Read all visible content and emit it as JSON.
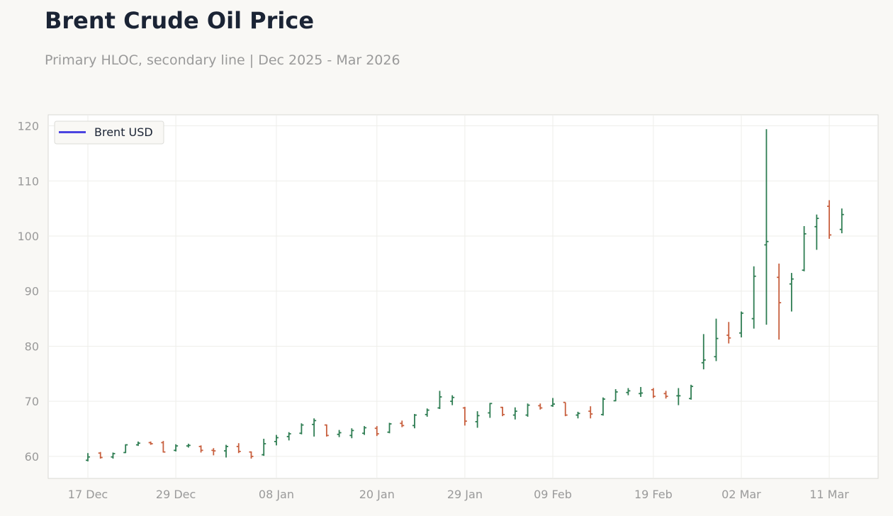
{
  "title": "Brent Crude Oil Price",
  "subtitle": "Primary HLOC, secondary line | Dec 2025 - Mar 2026",
  "colors": {
    "up": "#2e7d52",
    "down": "#c8603f",
    "line": "#4b45e0"
  },
  "chart_data": {
    "type": "ohlc",
    "title": "Brent Crude Oil Price",
    "subtitle": "Primary HLOC, secondary line | Dec 2025 - Mar 2026",
    "xlabel": "",
    "ylabel": "",
    "ylim": [
      56,
      122
    ],
    "yticks": [
      60,
      70,
      80,
      90,
      100,
      110,
      120
    ],
    "xticks": [
      "17 Dec",
      "29 Dec",
      "08 Jan",
      "20 Jan",
      "29 Jan",
      "09 Feb",
      "19 Feb",
      "02 Mar",
      "11 Mar"
    ],
    "grid": true,
    "legend": {
      "position": "top-left",
      "entries": [
        "Brent USD"
      ]
    },
    "series": [
      {
        "name": "",
        "kind": "ohlc",
        "points": [
          [
            "17 Dec",
            59.3,
            60.6,
            59.1,
            59.9
          ],
          [
            "18 Dec",
            60.6,
            60.8,
            59.6,
            59.8
          ],
          [
            "19 Dec",
            59.9,
            60.7,
            59.6,
            60.5
          ],
          [
            "22 Dec",
            60.7,
            62.2,
            60.6,
            62.1
          ],
          [
            "23 Dec",
            62.1,
            62.7,
            61.9,
            62.4
          ],
          [
            "24 Dec",
            62.5,
            62.7,
            62.1,
            62.3
          ],
          [
            "26 Dec",
            62.5,
            62.8,
            60.7,
            60.8
          ],
          [
            "29 Dec",
            61.1,
            62.2,
            60.9,
            61.9
          ],
          [
            "30 Dec",
            61.9,
            62.3,
            61.6,
            62.0
          ],
          [
            "31 Dec",
            61.8,
            62.0,
            60.7,
            61.1
          ],
          [
            "01 Jan",
            61.1,
            61.5,
            60.2,
            61.0
          ],
          [
            "02 Jan",
            61.0,
            62.1,
            59.8,
            61.8
          ],
          [
            "05 Jan",
            61.8,
            62.4,
            60.6,
            60.9
          ],
          [
            "06 Jan",
            60.8,
            60.9,
            59.6,
            60.0
          ],
          [
            "07 Jan",
            60.3,
            63.2,
            60.1,
            62.3
          ],
          [
            "08 Jan",
            62.7,
            63.9,
            62.0,
            63.4
          ],
          [
            "09 Jan",
            63.6,
            64.4,
            62.9,
            64.1
          ],
          [
            "12 Jan",
            64.2,
            66.0,
            64.0,
            65.7
          ],
          [
            "13 Jan",
            65.8,
            66.9,
            63.6,
            66.5
          ],
          [
            "14 Jan",
            65.7,
            65.8,
            63.6,
            63.8
          ],
          [
            "15 Jan",
            64.0,
            64.8,
            63.5,
            64.3
          ],
          [
            "16 Jan",
            63.8,
            65.1,
            63.3,
            64.7
          ],
          [
            "19 Jan",
            64.2,
            65.5,
            63.9,
            65.2
          ],
          [
            "20 Jan",
            65.1,
            65.5,
            63.7,
            64.1
          ],
          [
            "21 Jan",
            64.4,
            66.1,
            64.2,
            65.9
          ],
          [
            "22 Jan",
            66.0,
            66.5,
            65.3,
            65.6
          ],
          [
            "23 Jan",
            65.6,
            67.7,
            65.1,
            67.5
          ],
          [
            "26 Jan",
            67.6,
            68.7,
            67.2,
            68.4
          ],
          [
            "27 Jan",
            68.8,
            71.9,
            68.6,
            70.8
          ],
          [
            "28 Jan",
            70.0,
            71.1,
            69.3,
            70.7
          ],
          [
            "29 Jan",
            68.8,
            69.0,
            65.6,
            66.4
          ],
          [
            "30 Jan",
            66.3,
            68.2,
            65.2,
            67.4
          ],
          [
            "02 Feb",
            67.9,
            69.7,
            67.0,
            69.6
          ],
          [
            "03 Feb",
            68.9,
            69.0,
            67.3,
            67.6
          ],
          [
            "04 Feb",
            67.5,
            68.9,
            66.7,
            68.2
          ],
          [
            "05 Feb",
            67.5,
            69.6,
            67.2,
            69.3
          ],
          [
            "06 Feb",
            69.2,
            69.6,
            68.5,
            68.8
          ],
          [
            "09 Feb",
            69.2,
            70.6,
            69.0,
            69.5
          ],
          [
            "10 Feb",
            69.8,
            69.8,
            67.3,
            67.5
          ],
          [
            "11 Feb",
            67.5,
            68.1,
            66.9,
            67.8
          ],
          [
            "12 Feb",
            68.2,
            69.1,
            66.9,
            67.7
          ],
          [
            "13 Feb",
            67.6,
            70.7,
            67.4,
            70.4
          ],
          [
            "16 Feb",
            70.1,
            72.2,
            70.0,
            71.7
          ],
          [
            "17 Feb",
            71.6,
            72.4,
            71.1,
            71.9
          ],
          [
            "18 Feb",
            71.4,
            72.6,
            70.8,
            71.5
          ],
          [
            "19 Feb",
            72.1,
            72.4,
            70.6,
            70.9
          ],
          [
            "20 Feb",
            71.4,
            71.9,
            70.5,
            70.9
          ],
          [
            "23 Feb",
            71.0,
            72.4,
            69.3,
            71.0
          ],
          [
            "24 Feb",
            70.5,
            73.0,
            70.3,
            72.7
          ],
          [
            "25 Feb",
            77.0,
            82.2,
            75.8,
            77.5
          ],
          [
            "26 Feb",
            78.1,
            85.0,
            77.3,
            81.4
          ],
          [
            "27 Feb",
            82.0,
            84.4,
            80.5,
            81.5
          ],
          [
            "02 Mar",
            82.4,
            86.3,
            81.6,
            86.0
          ],
          [
            "03 Mar",
            85.0,
            94.5,
            83.2,
            92.7
          ],
          [
            "04 Mar",
            98.4,
            119.4,
            83.9,
            99.0
          ],
          [
            "05 Mar",
            92.5,
            95.0,
            81.2,
            87.9
          ],
          [
            "06 Mar",
            91.3,
            93.3,
            86.3,
            92.2
          ],
          [
            "09 Mar",
            93.8,
            101.8,
            93.6,
            100.4
          ],
          [
            "10 Mar",
            101.7,
            103.9,
            97.5,
            103.2
          ],
          [
            "11 Mar",
            105.4,
            106.5,
            99.5,
            100.2
          ],
          [
            "12 Mar",
            101.2,
            105.0,
            100.5,
            103.9
          ]
        ]
      },
      {
        "name": "Brent USD",
        "kind": "line",
        "values": []
      }
    ]
  }
}
